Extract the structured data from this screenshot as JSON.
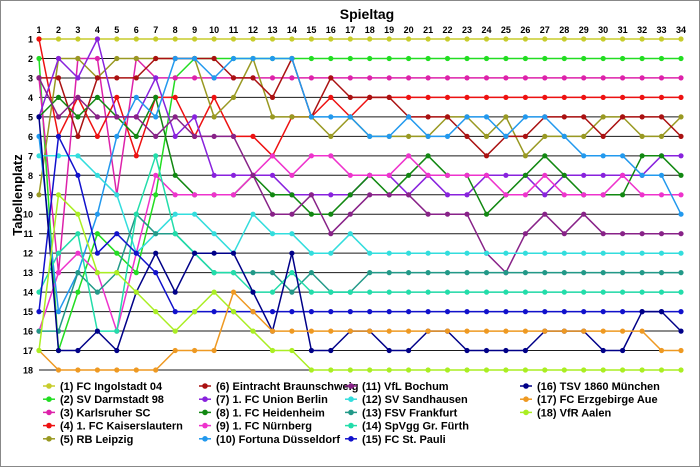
{
  "chart_data": {
    "type": "line",
    "title": "Spieltag",
    "xlabel": "Spieltag",
    "ylabel": "Tabellenplatz",
    "x": [
      1,
      2,
      3,
      4,
      5,
      6,
      7,
      8,
      9,
      10,
      11,
      12,
      13,
      14,
      15,
      16,
      17,
      18,
      19,
      20,
      21,
      22,
      23,
      24,
      25,
      26,
      27,
      28,
      29,
      30,
      31,
      32,
      33,
      34
    ],
    "ylim": [
      1,
      18
    ],
    "y_inverted": true,
    "grid": true,
    "legend_position": "bottom",
    "series": [
      {
        "name": "(1) FC Ingolstadt 04",
        "color": "#c7cc2b",
        "values": [
          1,
          1,
          1,
          1,
          1,
          1,
          1,
          1,
          1,
          1,
          1,
          1,
          1,
          1,
          1,
          1,
          1,
          1,
          1,
          1,
          1,
          1,
          1,
          1,
          1,
          1,
          1,
          1,
          1,
          1,
          1,
          1,
          1,
          1
        ]
      },
      {
        "name": "(2) SV Darmstadt 98",
        "color": "#22dd22",
        "values": [
          2,
          17,
          14,
          11,
          12,
          13,
          9,
          3,
          2,
          2,
          2,
          2,
          2,
          2,
          2,
          2,
          2,
          2,
          2,
          2,
          2,
          2,
          2,
          2,
          2,
          2,
          2,
          2,
          2,
          2,
          2,
          2,
          2,
          2
        ]
      },
      {
        "name": "(3) Karlsruher SC",
        "color": "#dd22aa",
        "values": [
          3,
          13,
          2,
          2,
          9,
          2,
          3,
          3,
          3,
          3,
          3,
          3,
          3,
          3,
          3,
          3,
          3,
          3,
          3,
          3,
          3,
          3,
          3,
          3,
          3,
          3,
          3,
          3,
          3,
          3,
          3,
          3,
          3,
          3
        ]
      },
      {
        "name": "(4) 1. FC Kaiserslautern",
        "color": "#ee1111",
        "values": [
          1,
          6,
          4,
          6,
          4,
          7,
          4,
          4,
          6,
          4,
          6,
          6,
          7,
          5,
          5,
          4,
          5,
          4,
          4,
          4,
          4,
          4,
          4,
          4,
          4,
          4,
          4,
          4,
          4,
          4,
          4,
          4,
          4,
          4
        ]
      },
      {
        "name": "(5) RB Leipzig",
        "color": "#999922",
        "values": [
          9,
          2,
          2,
          3,
          2,
          2,
          2,
          2,
          2,
          5,
          4,
          2,
          5,
          5,
          5,
          6,
          5,
          6,
          6,
          6,
          6,
          5,
          5,
          6,
          5,
          7,
          6,
          6,
          6,
          5,
          5,
          6,
          6,
          5
        ]
      },
      {
        "name": "(6) Eintracht Braunschweig",
        "color": "#aa1111",
        "values": [
          3,
          3,
          6,
          3,
          3,
          3,
          2,
          2,
          2,
          2,
          3,
          3,
          4,
          2,
          5,
          3,
          4,
          4,
          4,
          5,
          5,
          5,
          6,
          7,
          6,
          6,
          5,
          5,
          5,
          6,
          5,
          5,
          5,
          6
        ]
      },
      {
        "name": "(7) 1. FC Union Berlin",
        "color": "#8822dd",
        "values": [
          5,
          2,
          3,
          1,
          5,
          5,
          3,
          6,
          5,
          8,
          8,
          8,
          8,
          9,
          9,
          9,
          9,
          8,
          8,
          9,
          8,
          9,
          9,
          8,
          8,
          8,
          9,
          8,
          8,
          8,
          8,
          8,
          7,
          7
        ]
      },
      {
        "name": "(8) 1. FC Heidenheim",
        "color": "#118811",
        "values": [
          5,
          4,
          5,
          4,
          5,
          6,
          4,
          8,
          9,
          9,
          9,
          8,
          9,
          9,
          10,
          10,
          9,
          8,
          9,
          8,
          7,
          8,
          8,
          10,
          9,
          8,
          7,
          8,
          9,
          9,
          9,
          7,
          7,
          8
        ]
      },
      {
        "name": "(9) 1. FC Nürnberg",
        "color": "#ee33cc",
        "values": [
          16,
          13,
          12,
          13,
          16,
          12,
          8,
          9,
          9,
          9,
          9,
          8,
          7,
          8,
          7,
          7,
          8,
          8,
          8,
          7,
          8,
          8,
          8,
          8,
          9,
          9,
          8,
          9,
          9,
          9,
          8,
          9,
          9,
          9
        ]
      },
      {
        "name": "(10) Fortuna Düsseldorf",
        "color": "#2299ee",
        "values": [
          6,
          15,
          13,
          10,
          6,
          4,
          5,
          2,
          2,
          3,
          2,
          2,
          2,
          2,
          5,
          5,
          5,
          6,
          6,
          5,
          6,
          6,
          5,
          5,
          6,
          5,
          5,
          6,
          7,
          7,
          7,
          8,
          8,
          10
        ]
      },
      {
        "name": "(11) VfL Bochum",
        "color": "#882288",
        "values": [
          3,
          5,
          4,
          5,
          5,
          5,
          6,
          5,
          6,
          6,
          6,
          8,
          10,
          10,
          9,
          11,
          10,
          9,
          9,
          9,
          10,
          10,
          10,
          12,
          13,
          11,
          10,
          11,
          10,
          11,
          11,
          11,
          11,
          11
        ]
      },
      {
        "name": "(12) SV Sandhausen",
        "color": "#33dddd",
        "values": [
          7,
          7,
          7,
          8,
          9,
          12,
          11,
          10,
          10,
          11,
          12,
          10,
          11,
          11,
          12,
          12,
          11,
          12,
          12,
          12,
          12,
          12,
          12,
          12,
          12,
          12,
          12,
          12,
          12,
          12,
          12,
          12,
          12,
          12
        ]
      },
      {
        "name": "(13) FSV Frankfurt",
        "color": "#229988",
        "values": [
          16,
          16,
          13,
          14,
          13,
          10,
          11,
          11,
          12,
          13,
          13,
          13,
          13,
          14,
          13,
          14,
          14,
          13,
          13,
          13,
          13,
          13,
          13,
          13,
          13,
          13,
          13,
          13,
          13,
          13,
          13,
          13,
          13,
          13
        ]
      },
      {
        "name": "(14) SpVgg Gr. Fürth",
        "color": "#22ddaa",
        "values": [
          14,
          12,
          11,
          16,
          16,
          10,
          7,
          11,
          12,
          13,
          13,
          14,
          14,
          13,
          14,
          14,
          14,
          14,
          14,
          14,
          14,
          14,
          14,
          14,
          14,
          14,
          14,
          14,
          14,
          14,
          14,
          14,
          14,
          14
        ]
      },
      {
        "name": "(15) FC St. Pauli",
        "color": "#1111cc",
        "values": [
          15,
          6,
          8,
          12,
          11,
          12,
          13,
          15,
          15,
          15,
          15,
          15,
          15,
          15,
          15,
          15,
          15,
          15,
          15,
          15,
          15,
          15,
          15,
          15,
          15,
          15,
          15,
          15,
          15,
          15,
          15,
          15,
          15,
          15
        ]
      },
      {
        "name": "(16) TSV 1860 München",
        "color": "#000088",
        "values": [
          5,
          17,
          17,
          16,
          17,
          14,
          12,
          14,
          12,
          12,
          12,
          14,
          16,
          12,
          17,
          17,
          16,
          16,
          17,
          17,
          16,
          16,
          17,
          17,
          17,
          17,
          16,
          16,
          16,
          17,
          17,
          15,
          15,
          16
        ]
      },
      {
        "name": "(17) FC Erzgebirge Aue",
        "color": "#ee9922",
        "values": [
          17,
          18,
          18,
          18,
          18,
          18,
          18,
          17,
          17,
          17,
          14,
          15,
          16,
          16,
          16,
          16,
          16,
          16,
          16,
          16,
          16,
          16,
          16,
          16,
          16,
          16,
          16,
          16,
          16,
          16,
          16,
          16,
          17,
          17
        ]
      },
      {
        "name": "(18) VfR Aalen",
        "color": "#aaee22",
        "values": [
          17,
          9,
          10,
          13,
          13,
          14,
          15,
          16,
          15,
          14,
          15,
          16,
          17,
          17,
          18,
          18,
          18,
          18,
          18,
          18,
          18,
          18,
          18,
          18,
          18,
          18,
          18,
          18,
          18,
          18,
          18,
          18,
          18,
          18
        ]
      }
    ]
  }
}
